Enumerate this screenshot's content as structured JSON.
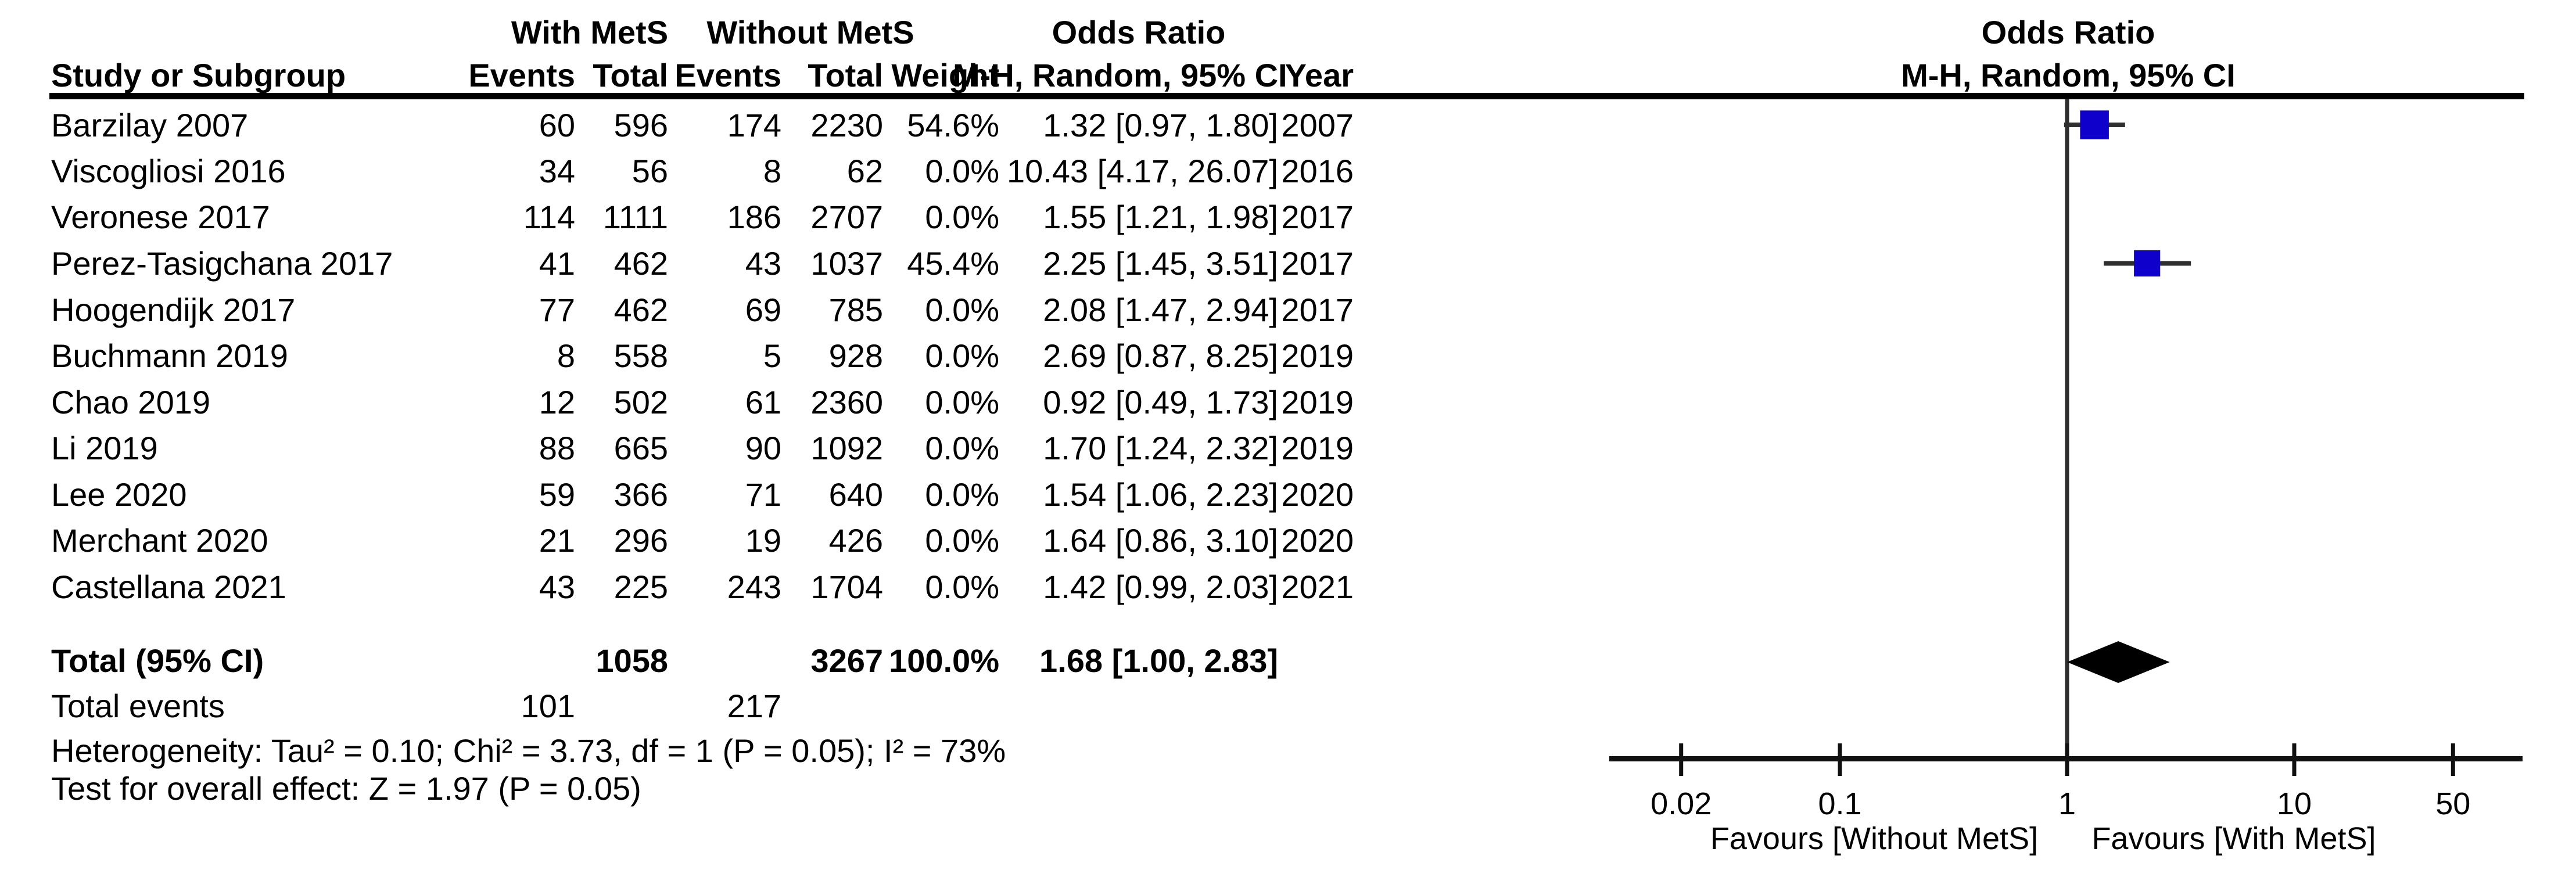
{
  "header": {
    "group_with": "With MetS",
    "group_without": "Without MetS",
    "or_title": "Odds Ratio",
    "or_subtitle": "M-H, Random, 95% CI",
    "study": "Study or Subgroup",
    "events": "Events",
    "total": "Total",
    "weight": "Weight",
    "year": "Year",
    "plot_title": "Odds Ratio",
    "plot_subtitle": "M-H, Random, 95% CI"
  },
  "rows": [
    {
      "study": "Barzilay 2007",
      "e1": "60",
      "t1": "596",
      "e2": "174",
      "t2": "2230",
      "weight": "54.6%",
      "or_ci": "1.32 [0.97, 1.80]",
      "year": "2007"
    },
    {
      "study": "Viscogliosi 2016",
      "e1": "34",
      "t1": "56",
      "e2": "8",
      "t2": "62",
      "weight": "0.0%",
      "or_ci": "10.43 [4.17, 26.07]",
      "year": "2016"
    },
    {
      "study": "Veronese 2017",
      "e1": "114",
      "t1": "1111",
      "e2": "186",
      "t2": "2707",
      "weight": "0.0%",
      "or_ci": "1.55 [1.21, 1.98]",
      "year": "2017"
    },
    {
      "study": "Perez-Tasigchana 2017",
      "e1": "41",
      "t1": "462",
      "e2": "43",
      "t2": "1037",
      "weight": "45.4%",
      "or_ci": "2.25 [1.45, 3.51]",
      "year": "2017"
    },
    {
      "study": "Hoogendijk 2017",
      "e1": "77",
      "t1": "462",
      "e2": "69",
      "t2": "785",
      "weight": "0.0%",
      "or_ci": "2.08 [1.47, 2.94]",
      "year": "2017"
    },
    {
      "study": "Buchmann 2019",
      "e1": "8",
      "t1": "558",
      "e2": "5",
      "t2": "928",
      "weight": "0.0%",
      "or_ci": "2.69 [0.87, 8.25]",
      "year": "2019"
    },
    {
      "study": "Chao 2019",
      "e1": "12",
      "t1": "502",
      "e2": "61",
      "t2": "2360",
      "weight": "0.0%",
      "or_ci": "0.92 [0.49, 1.73]",
      "year": "2019"
    },
    {
      "study": "Li 2019",
      "e1": "88",
      "t1": "665",
      "e2": "90",
      "t2": "1092",
      "weight": "0.0%",
      "or_ci": "1.70 [1.24, 2.32]",
      "year": "2019"
    },
    {
      "study": "Lee 2020",
      "e1": "59",
      "t1": "366",
      "e2": "71",
      "t2": "640",
      "weight": "0.0%",
      "or_ci": "1.54 [1.06, 2.23]",
      "year": "2020"
    },
    {
      "study": "Merchant 2020",
      "e1": "21",
      "t1": "296",
      "e2": "19",
      "t2": "426",
      "weight": "0.0%",
      "or_ci": "1.64 [0.86, 3.10]",
      "year": "2020"
    },
    {
      "study": "Castellana 2021",
      "e1": "43",
      "t1": "225",
      "e2": "243",
      "t2": "1704",
      "weight": "0.0%",
      "or_ci": "1.42 [0.99, 2.03]",
      "year": "2021"
    }
  ],
  "totals": {
    "label": "Total (95% CI)",
    "t1": "1058",
    "t2": "3267",
    "weight": "100.0%",
    "or_ci": "1.68 [1.00, 2.83]"
  },
  "total_events": {
    "label": "Total events",
    "e1": "101",
    "e2": "217"
  },
  "footer": {
    "heterogeneity": "Heterogeneity: Tau² = 0.10; Chi² = 3.73, df = 1 (P = 0.05); I² = 73%",
    "overall_effect": "Test for overall effect: Z = 1.97 (P = 0.05)"
  },
  "colors": {
    "square": "#0f00cc",
    "ci_line": "#2e2e2e",
    "axis": "#111111",
    "diamond": "#000000",
    "text": "#000000"
  },
  "chart_data": {
    "type": "forest",
    "title": "Odds Ratio",
    "subtitle": "M-H, Random, 95% CI",
    "scale": "log10",
    "or_axis": {
      "ticks": [
        0.02,
        0.1,
        1,
        10,
        50
      ],
      "tick_labels": [
        "0.02",
        "0.1",
        "1",
        "10",
        "50"
      ],
      "center_line": 1,
      "favours_left": "Favours [Without MetS]",
      "favours_right": "Favours [With MetS]"
    },
    "studies": [
      {
        "name": "Barzilay 2007",
        "or": 1.32,
        "ci_low": 0.97,
        "ci_high": 1.8,
        "weight_pct": 54.6,
        "year": 2007,
        "plotted": true
      },
      {
        "name": "Viscogliosi 2016",
        "or": 10.43,
        "ci_low": 4.17,
        "ci_high": 26.07,
        "weight_pct": 0.0,
        "year": 2016,
        "plotted": false
      },
      {
        "name": "Veronese 2017",
        "or": 1.55,
        "ci_low": 1.21,
        "ci_high": 1.98,
        "weight_pct": 0.0,
        "year": 2017,
        "plotted": false
      },
      {
        "name": "Perez-Tasigchana 2017",
        "or": 2.25,
        "ci_low": 1.45,
        "ci_high": 3.51,
        "weight_pct": 45.4,
        "year": 2017,
        "plotted": true
      },
      {
        "name": "Hoogendijk 2017",
        "or": 2.08,
        "ci_low": 1.47,
        "ci_high": 2.94,
        "weight_pct": 0.0,
        "year": 2017,
        "plotted": false
      },
      {
        "name": "Buchmann 2019",
        "or": 2.69,
        "ci_low": 0.87,
        "ci_high": 8.25,
        "weight_pct": 0.0,
        "year": 2019,
        "plotted": false
      },
      {
        "name": "Chao 2019",
        "or": 0.92,
        "ci_low": 0.49,
        "ci_high": 1.73,
        "weight_pct": 0.0,
        "year": 2019,
        "plotted": false
      },
      {
        "name": "Li 2019",
        "or": 1.7,
        "ci_low": 1.24,
        "ci_high": 2.32,
        "weight_pct": 0.0,
        "year": 2019,
        "plotted": false
      },
      {
        "name": "Lee 2020",
        "or": 1.54,
        "ci_low": 1.06,
        "ci_high": 2.23,
        "weight_pct": 0.0,
        "year": 2020,
        "plotted": false
      },
      {
        "name": "Merchant 2020",
        "or": 1.64,
        "ci_low": 0.86,
        "ci_high": 3.1,
        "weight_pct": 0.0,
        "year": 2020,
        "plotted": false
      },
      {
        "name": "Castellana 2021",
        "or": 1.42,
        "ci_low": 0.99,
        "ci_high": 2.03,
        "weight_pct": 0.0,
        "year": 2021,
        "plotted": false
      }
    ],
    "total": {
      "or": 1.68,
      "ci_low": 1.0,
      "ci_high": 2.83,
      "weight_pct": 100.0
    }
  }
}
